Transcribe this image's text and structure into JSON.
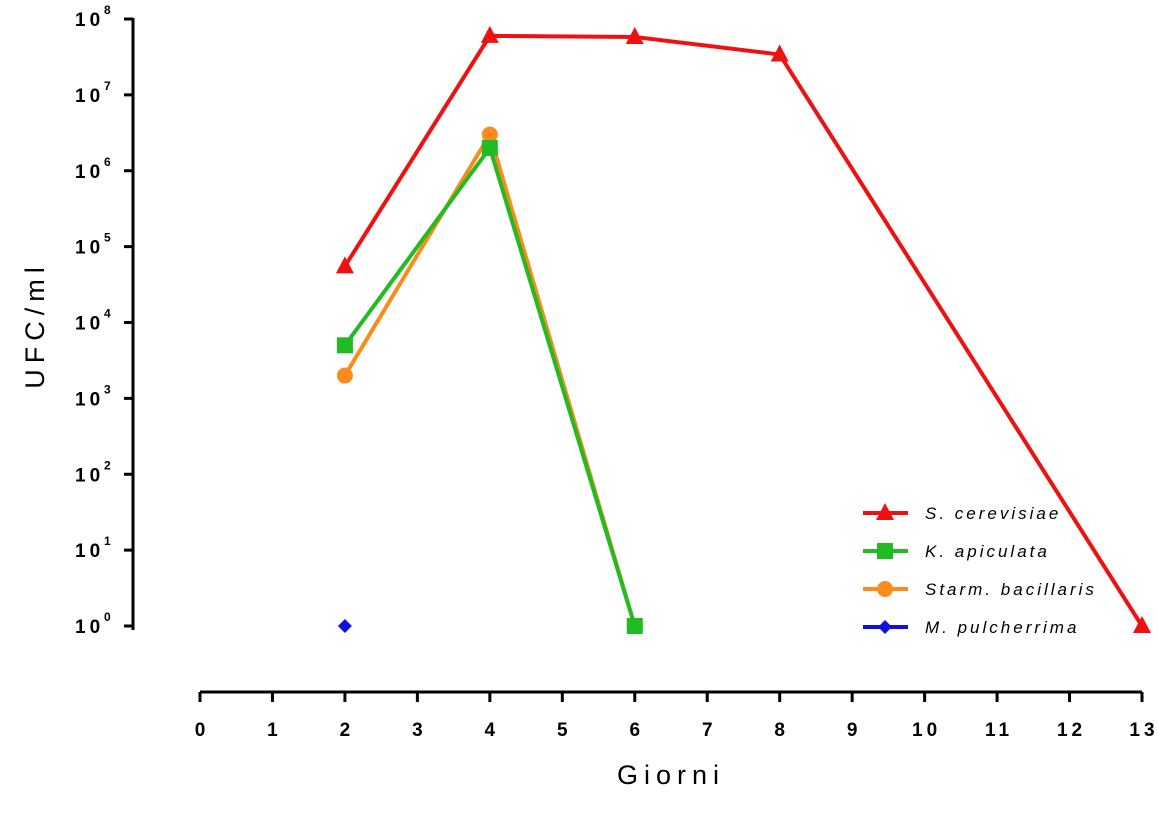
{
  "chart_data": {
    "type": "line",
    "xlabel": "Giorni",
    "ylabel": "UFC/ml",
    "xlim": [
      0,
      13
    ],
    "x_ticks": [
      "0",
      "1",
      "2",
      "3",
      "4",
      "5",
      "6",
      "7",
      "8",
      "9",
      "10",
      "11",
      "12",
      "13"
    ],
    "y_scale": "log10",
    "ylim": [
      1,
      100000000
    ],
    "y_ticks": [
      {
        "base": "10",
        "exp": "0"
      },
      {
        "base": "10",
        "exp": "1"
      },
      {
        "base": "10",
        "exp": "2"
      },
      {
        "base": "10",
        "exp": "3"
      },
      {
        "base": "10",
        "exp": "4"
      },
      {
        "base": "10",
        "exp": "5"
      },
      {
        "base": "10",
        "exp": "6"
      },
      {
        "base": "10",
        "exp": "7"
      },
      {
        "base": "10",
        "exp": "8"
      }
    ],
    "legend_position": "bottom-right",
    "grid": false,
    "series": [
      {
        "name": "S. cerevisiae",
        "color": "#ee1111",
        "marker": "triangle",
        "x": [
          2,
          4,
          6,
          8,
          13
        ],
        "y": [
          55000,
          60000000,
          58000000,
          34000000,
          1
        ]
      },
      {
        "name": "K. apiculata",
        "color": "#22bb22",
        "marker": "square",
        "x": [
          2,
          4,
          6
        ],
        "y": [
          5000,
          2000000,
          1
        ]
      },
      {
        "name": "Starm. bacillaris",
        "color": "#f98c1c",
        "marker": "circle",
        "x": [
          2,
          4,
          6
        ],
        "y": [
          2000,
          3000000,
          1
        ]
      },
      {
        "name": "M. pulcherrima",
        "color": "#1111dd",
        "marker": "diamond",
        "x": [
          2
        ],
        "y": [
          1
        ]
      }
    ]
  }
}
